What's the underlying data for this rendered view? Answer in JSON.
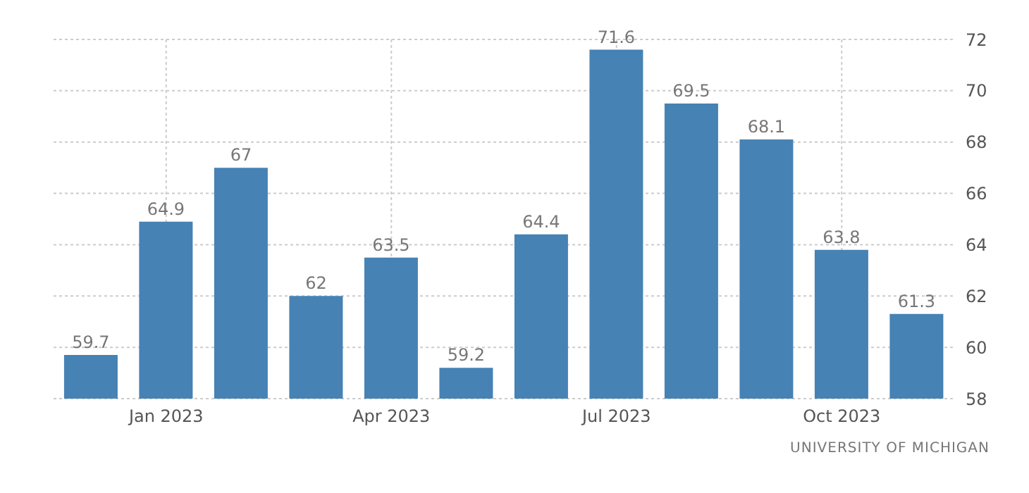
{
  "chart_data": {
    "type": "bar",
    "categories": [
      null,
      "Jan 2023",
      null,
      null,
      "Apr 2023",
      null,
      null,
      "Jul 2023",
      null,
      null,
      "Oct 2023",
      null
    ],
    "values": [
      59.7,
      64.9,
      67,
      62,
      63.5,
      59.2,
      64.4,
      71.6,
      69.5,
      68.1,
      63.8,
      61.3
    ],
    "color": "#4682b4",
    "ylim": [
      58,
      72
    ],
    "yticks": [
      58,
      60,
      62,
      64,
      66,
      68,
      70,
      72
    ],
    "grid": true,
    "data_labels": true,
    "annotations": [
      "UNIVERSITY OF MICHIGAN"
    ]
  }
}
